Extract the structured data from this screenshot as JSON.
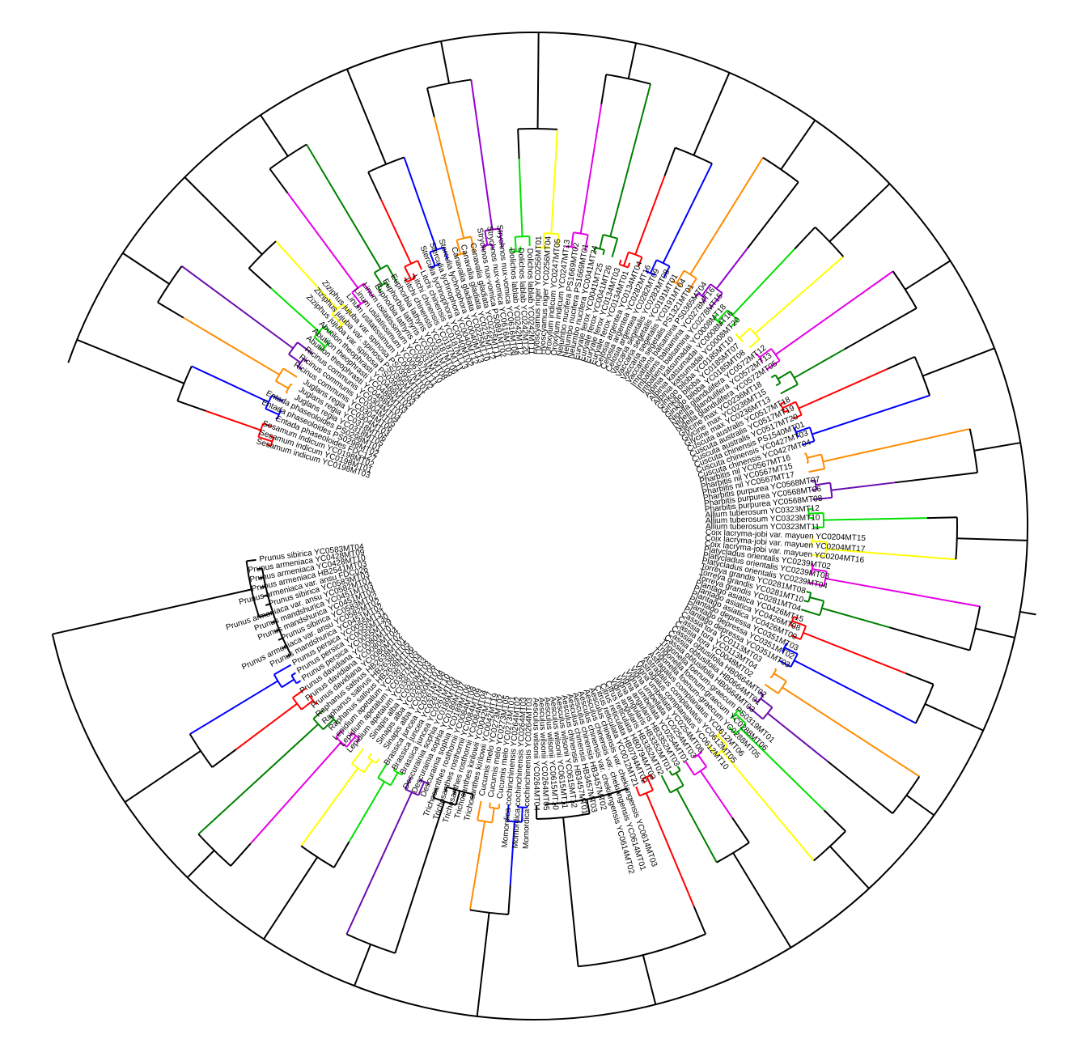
{
  "tree": {
    "colors": {
      "red": "#ff0000",
      "blue": "#0000ff",
      "orange": "#ff8c00",
      "purple": "#6a0dad",
      "green": "#00e000",
      "yellow": "#ffff00",
      "magenta": "#e600e6",
      "darkgreen": "#008000",
      "violet": "#9400d3",
      "black": "#000000"
    },
    "clades": [
      {
        "color": "red",
        "leaves": [
          "Sesamum indicum YC0198MT03",
          "Sesamum indicum YC0198MT01",
          "Sesamum indicum YC0198MT02"
        ]
      },
      {
        "color": "blue",
        "leaves": [
          "Entada phaseoloides FDC127",
          "Entada phaseoloides PS0298MT02",
          "Entada phaseoloides PS0298MT01"
        ]
      },
      {
        "color": "orange",
        "leaves": [
          "Juglans regia YC0318MT05",
          "Juglans regia YC0318MT06",
          "Juglans regia YC0304MT03"
        ]
      },
      {
        "color": "purple",
        "leaves": [
          "Ricinus communis YC0304MT06",
          "Ricinus communis YC0304MT05",
          "Ricinus communis YC0304MT04"
        ]
      },
      {
        "color": "green",
        "leaves": [
          "Abutilon theophrasti YC0488MT01",
          "Abutilon theophrasti YC0488MT03",
          "Abutilon theophrasti YC0488MT02"
        ]
      },
      {
        "color": "yellow",
        "leaves": [
          "Ziziphus jujuba var. spinosa PS0395MT03",
          "Ziziphus jujuba var. spinosa PS0395MT02",
          "Ziziphus jujuba var. spinosa PS0395MT01"
        ]
      },
      {
        "color": "magenta",
        "leaves": [
          "Linum usitatissimum YC0067MT01",
          "Linum usitatissimum YC0067MT02",
          "Linum usitatissimum YC0067MT11"
        ]
      },
      {
        "color": "darkgreen",
        "leaves": [
          "Euphorbia lathyris YC0331MT10",
          "Euphorbia lathyris YC0331MT08",
          "Euphorbia lathyris YC0331MT09"
        ]
      },
      {
        "color": "red",
        "leaves": [
          "Litchi chinensis YC0187MT06",
          "Litchi chinensis YC0187MT11",
          "Litchi chinensis YC0187MT13"
        ]
      },
      {
        "color": "blue",
        "leaves": [
          "Sterculia lychnophora YC0040MT02",
          "Sterculia lychnophora YC0040MT12",
          "Sterculia lychnophora YC0040MT13"
        ]
      },
      {
        "color": "orange",
        "leaves": [
          "Canavalia gladiata YC0225MT10",
          "Canavalia gladiata YC0225MT12",
          "Canavalia gladiata YC0225MT11"
        ]
      },
      {
        "color": "violet",
        "leaves": [
          "Strychnos nux-vomica PS0891MT02",
          "Strychnos nux-vomica YC0616MT07",
          "Strychnos nux-vomica YC0616MT08"
        ]
      },
      {
        "color": "green",
        "leaves": [
          "Dolichos lablab YC0242MT12",
          "Dolichos lablab YC0242MT20",
          "Dolichos lablab YC0242MT11"
        ]
      },
      {
        "color": "yellow",
        "leaves": [
          "Hyoscyamus niger YC0256MT01",
          "Hyoscyamus niger YC0256MT04",
          "Oroxylum indicum YC0247MT05"
        ]
      },
      {
        "color": "magenta",
        "leaves": [
          "Oroxylum indicum YC0247MT13",
          "Nelumbo nucifera PS1669MT02",
          "Nelumbo nucifera PS1669MT01"
        ]
      },
      {
        "color": "darkgreen",
        "leaves": [
          "Nelumbo nucifera YC0041MT24",
          "Euryale ferox YC0041MT25",
          "Euryale ferox YC0041MT26"
        ]
      },
      {
        "color": "red",
        "leaves": [
          "Euryale ferox YC0134MT03",
          "Euryale ferox YC0134MT01",
          "Celosia argentea YC0134MT04"
        ]
      },
      {
        "color": "blue",
        "leaves": [
          "Celosia argentea YC0282MT16",
          "Celosia argentea YC0282MT09",
          "Vaccaria segetalis YC0282MT08"
        ]
      },
      {
        "color": "orange",
        "leaves": [
          "Vaccaria segetalis YC0191MT01",
          "Vaccaria segetalis YC0191MT04",
          "Vaccaria segetalis PS1321MT01"
        ]
      },
      {
        "color": "violet",
        "leaves": [
          "Impatiens balsamina PS0365MT04",
          "Impatiens balsamina YC0278MT16",
          "Impatiens balsamina YC0278MT15"
        ]
      },
      {
        "color": "green",
        "leaves": [
          "Alpinia katsumadai YC0008MT18",
          "Alpinia katsumadai YC0008MT16",
          "Alpinia katsumadai YC0008MT20"
        ]
      },
      {
        "color": "yellow",
        "leaves": [
          "Ginkgo biloba YC0185MT10",
          "Ginkgo biloba YC0185MT07",
          "Ginkgo biloba YC0185MT08"
        ]
      },
      {
        "color": "magenta",
        "leaves": [
          "Nigella glandulifera YC0572MT12",
          "Nigella glandulifera YC0572MT13",
          "Nigella glandulifera YC0572MT05"
        ]
      },
      {
        "color": "darkgreen",
        "leaves": [
          "Glycine max YC0236MT18",
          "Glycine max YC0236MT15",
          "Glycine max YC0236MT13"
        ]
      },
      {
        "color": "red",
        "leaves": [
          "Cuscuta australis YC0517MT18",
          "Cuscuta australis YC0517MT19",
          "Cuscuta australis YC0517MT20"
        ]
      },
      {
        "color": "blue",
        "leaves": [
          "Cuscuta chinensis PS1540MT01",
          "Cuscuta chinensis YC0427MT03",
          "Cuscuta chinensis YC0427MT04"
        ]
      },
      {
        "color": "orange",
        "leaves": [
          "Pharbitis nil YC0567MT16",
          "Pharbitis nil YC0567MT15",
          "Pharbitis nil YC0567MT17"
        ]
      },
      {
        "color": "purple",
        "leaves": [
          "Pharbitis purpurea YC0568MT07",
          "Pharbitis purpurea YC0568MT06",
          "Pharbitis purpurea YC0568MT08"
        ]
      },
      {
        "color": "green",
        "leaves": [
          "Allium tuberosum YC0323MT12",
          "Allium tuberosum YC0323MT10",
          "Allium tuberosum YC0323MT11"
        ]
      },
      {
        "color": "yellow",
        "leaves": [
          "Coix lacryma-jobi var. mayuen YC0204MT15",
          "Coix lacryma-jobi var. mayuen YC0204MT17",
          "Coix lacryma-jobi var. mayuen YC0204MT16"
        ]
      },
      {
        "color": "magenta",
        "leaves": [
          "Platycladus orientalis YC0239MT02",
          "Platycladus orientalis YC0239MT03",
          "Platycladus orientalis YC0239MT04"
        ]
      },
      {
        "color": "darkgreen",
        "leaves": [
          "Torreya grandis YC0281MT08",
          "Torreya grandis YC0281MT10",
          "Torreya grandis YC0281MT04"
        ]
      },
      {
        "color": "red",
        "leaves": [
          "Plantago asiatica YC0426MT15",
          "Plantago asiatica YC0426MT08",
          "Plantago asiatica YC0426MT09"
        ]
      },
      {
        "color": "blue",
        "leaves": [
          "Plantago depressa YC0351MT03",
          "Plantago depressa YC0351MT02",
          "Plantago depressa YC0351MT03"
        ]
      },
      {
        "color": "orange",
        "leaves": [
          "Cassia tora YC0113MT03",
          "Cassia tora YC0113MT04",
          "Cassia tora YC0048MT02"
        ]
      },
      {
        "color": "purple",
        "leaves": [
          "Cassia obtusifolia HB0664MT02",
          "Cassia obtusifolia HB0664MT01",
          "Cassia obtusifolia HB0664MT03"
        ]
      },
      {
        "color": "green",
        "leaves": [
          "Trigonella foenum-graecum PS0319MT01",
          "Trigonella foenum-graecum YC0288MT06",
          "Trigonella foenum-graecum YC0288MT05"
        ]
      },
      {
        "color": "yellow",
        "leaves": [
          "Astragalus complanatus YC0612MT06",
          "Astragalus complanatus YC0612MT05",
          "Astragalus complanatus YC0612MT10"
        ]
      },
      {
        "color": "magenta",
        "leaves": [
          "Vigna umbellata YC0254MT08",
          "Vigna umbellata YC0254MT03",
          "Vigna umbellata YC0254MT01"
        ]
      },
      {
        "color": "darkgreen",
        "leaves": [
          "Vigna angularis HB3352MT03",
          "Vigna angularis HB3352MT01",
          "Vigna angularis HB3352MT02"
        ]
      },
      {
        "color": "red",
        "leaves": [
          "Citrus reticulata HB0794MT03",
          "Citrus reticulata HB0794MT02",
          "Citrus reticulata YC0012MT21"
        ]
      },
      {
        "color": "black",
        "leaves": [
          "Aesculus chinensis var. chekiangensis YC0614MT03",
          "Aesculus chinensis var. chekiangensis YC0614MT01",
          "Aesculus chinensis var. chekiangensis YC0614MT02",
          "Aesculus chinensis HB3457MT02",
          "Aesculus chinensis HB3457MT03",
          "Aesculus chinensis HB3457MT01",
          "Aesculus wilsonii YC0615MT12",
          "Aesculus wilsonii YC0615MT11",
          "Aesculus wilsonii YC0615MT10",
          "Aesculus wilsonii YC0264MT05",
          "Aesculus wilsonii YC0264MT04"
        ]
      },
      {
        "color": "blue",
        "leaves": [
          "Momordica cochinchinensis YC0264MT03",
          "Momordica cochinchinensis YC0264MT03",
          "Momordica cochinchinensis YC0264MT02"
        ]
      },
      {
        "color": "orange",
        "leaves": [
          "Cucumis melo YC0273MT01",
          "Cucumis melo YC0273MT05",
          "Cucumis melo YC0273MT02"
        ]
      },
      {
        "color": "black",
        "leaves": [
          "Trichosanthes kirilowii YC0042MT19",
          "Trichosanthes kirilowii YC0042MT17",
          "Trichosanthes rosthornii YC0084MT04",
          "Trichosanthes rosthornii YC0084MT09",
          "Trichosanthes rosthornii YC0084MT08"
        ]
      },
      {
        "color": "purple",
        "leaves": [
          "Descurainia sophia YC0189MT06",
          "Descurainia sophia YC0189MT07",
          "Descurainia sophia YC0189MT08"
        ]
      },
      {
        "color": "green",
        "leaves": [
          "Brassica juncea YC0261MT09",
          "Brassica juncea YC0261MT10",
          "Brassica juncea YC0261MT08"
        ]
      },
      {
        "color": "yellow",
        "leaves": [
          "Sinapis alba YC0260MT01",
          "Sinapis alba YC0260MT06",
          "Sinapis alba YC0260MT03"
        ]
      },
      {
        "color": "magenta",
        "leaves": [
          "Lepidium apetalum YC0387MT03",
          "Lepidium apetalum YC0387MT04",
          "Lepidium apetalum YC0387MT05"
        ]
      },
      {
        "color": "darkgreen",
        "leaves": [
          "Raphanus sativus HB2638MT06",
          "Raphanus sativus HB2638MT05",
          "Raphanus sativus HB2638MT01"
        ]
      },
      {
        "color": "red",
        "leaves": [
          "Prunus davidiana YC0080MT02",
          "Prunus davidiana YC0080MT04",
          "Prunus davidiana YC0080MT01"
        ]
      },
      {
        "color": "blue",
        "leaves": [
          "Prunus persica YC0055MT29",
          "Prunus persica YC0055MT30",
          "Prunus persica YC0055MT31"
        ]
      },
      {
        "color": "black",
        "leaves": [
          "Prunus mandshurica YC0451MT02",
          "Prunus armeniaca var. ansu YC0582MT02",
          "Prunus sibirica YC0583MT02",
          "Prunus mandshurica YC0451MT04",
          "Prunus mandshurica YC0451MT03",
          "Prunus armeniaca var. ansu YC0582MT01",
          "Prunus sibirica YC0583MT03",
          "Prunus armeniaca var. ansu FDC026",
          "Prunus armeniaca HB2541MT03",
          "Prunus armeniaca YC0428MT10",
          "Prunus armeniaca YC0428MT09",
          "Prunus sibirica YC0583MT04"
        ]
      }
    ]
  }
}
